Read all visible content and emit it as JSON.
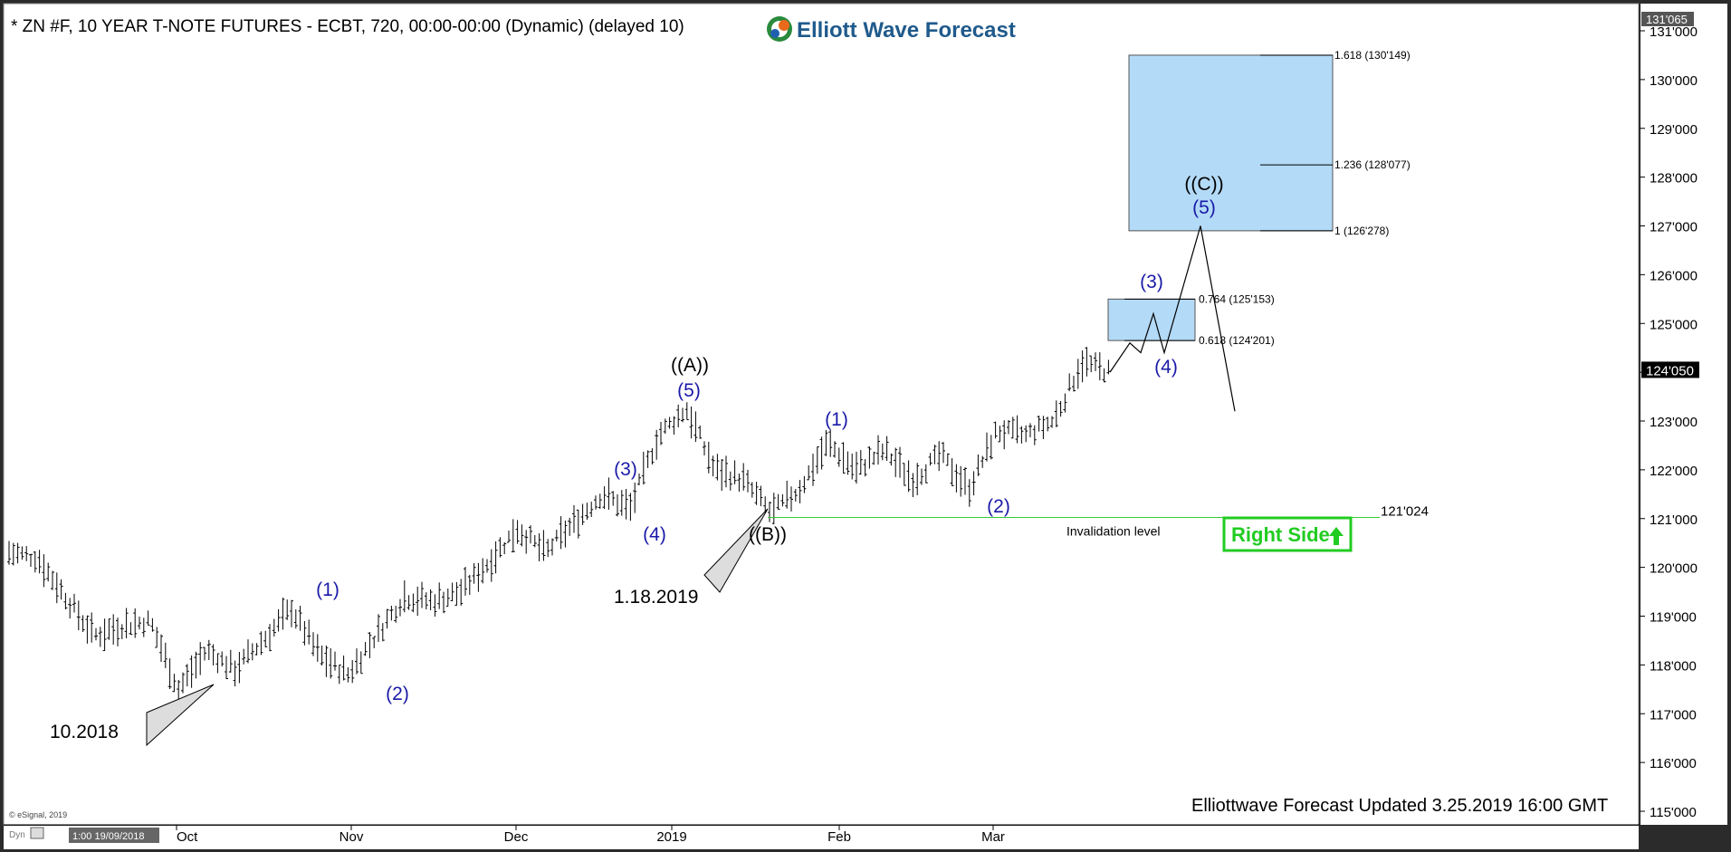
{
  "header": {
    "symbol_text": "* ZN #F, 10 YEAR T-NOTE FUTURES - ECBT, 720, 00:00-00:00 (Dynamic) (delayed 10)",
    "logo_text": "Elliott Wave Forecast",
    "footer_text": "Elliottwave Forecast Updated 3.25.2019 16:00 GMT",
    "copyright": "© eSignal, 2019",
    "dyn_label": "Dyn",
    "cursor_time": "1:00 19/09/2018"
  },
  "colors": {
    "wave_blue": "#1a1aa8",
    "invalidation_green": "#33cc33",
    "target_box": "#b3daf7",
    "right_side_green": "#22cc22"
  },
  "chart_data": {
    "type": "ohlc-bar",
    "ylim": [
      115,
      131.2
    ],
    "y_ticks": [
      "115'000",
      "116'000",
      "117'000",
      "118'000",
      "119'000",
      "120'000",
      "121'000",
      "122'000",
      "123'000",
      "124'000",
      "125'000",
      "126'000",
      "127'000",
      "128'000",
      "129'000",
      "130'000",
      "131'000"
    ],
    "x_ticks": [
      "Oct",
      "Nov",
      "Dec",
      "2019",
      "Feb",
      "Mar"
    ],
    "top_price_label": "131'065",
    "current_price_label": "124'050",
    "current_price": 124.05,
    "price_path": [
      120.3,
      120.2,
      119.4,
      118.6,
      118.8,
      118.9,
      117.5,
      118.3,
      117.9,
      118.5,
      119.15,
      118.2,
      117.8,
      118.6,
      119.4,
      119.3,
      119.5,
      120.1,
      120.8,
      120.3,
      120.9,
      121.5,
      121.2,
      122.7,
      123.25,
      122.0,
      121.8,
      121.1,
      121.6,
      122.55,
      122.0,
      122.4,
      121.8,
      122.3,
      121.6,
      122.8,
      122.7,
      123.0,
      124.2,
      124.0
    ],
    "projection_path": [
      124.0,
      124.6,
      124.4,
      125.2,
      124.4,
      127.0,
      123.2
    ],
    "wave_labels": [
      {
        "text": "(1)",
        "price": 119.6,
        "color": "blue"
      },
      {
        "text": "(2)",
        "price": 117.4,
        "color": "blue"
      },
      {
        "text": "(3)",
        "price": 121.9,
        "color": "blue"
      },
      {
        "text": "(4)",
        "price": 120.6,
        "color": "blue"
      },
      {
        "text": "(5)",
        "price": 123.5,
        "color": "blue"
      },
      {
        "text": "((A))",
        "price": 124.0,
        "color": "black"
      },
      {
        "text": "((B))",
        "price": 120.6,
        "color": "black"
      },
      {
        "text": "(1)",
        "price": 122.9,
        "color": "blue"
      },
      {
        "text": "(2)",
        "price": 121.1,
        "color": "blue"
      },
      {
        "text": "(3)",
        "price": 125.4,
        "color": "blue"
      },
      {
        "text": "(4)",
        "price": 124.0,
        "color": "blue"
      },
      {
        "text": "((C))",
        "price": 127.8,
        "color": "black"
      },
      {
        "text": "(5)",
        "price": 127.2,
        "color": "blue"
      }
    ],
    "date_annotations": [
      "10.2018",
      "1.18.2019"
    ],
    "invalidation": {
      "price": 121.024,
      "value_label": "121'024",
      "label": "Invalidation level"
    },
    "fib_levels": [
      {
        "label": "1.618 (130'149)",
        "price": 130.5
      },
      {
        "label": "1.236 (128'077)",
        "price": 128.25
      },
      {
        "label": "1 (126'278)",
        "price": 126.9
      },
      {
        "label": "0.764 (125'153)",
        "price": 125.5
      },
      {
        "label": "0.618 (124'201)",
        "price": 124.65
      }
    ],
    "target_zones": [
      {
        "from": 126.9,
        "to": 130.5
      },
      {
        "from": 124.65,
        "to": 125.5
      }
    ],
    "badge": "Right Side"
  }
}
